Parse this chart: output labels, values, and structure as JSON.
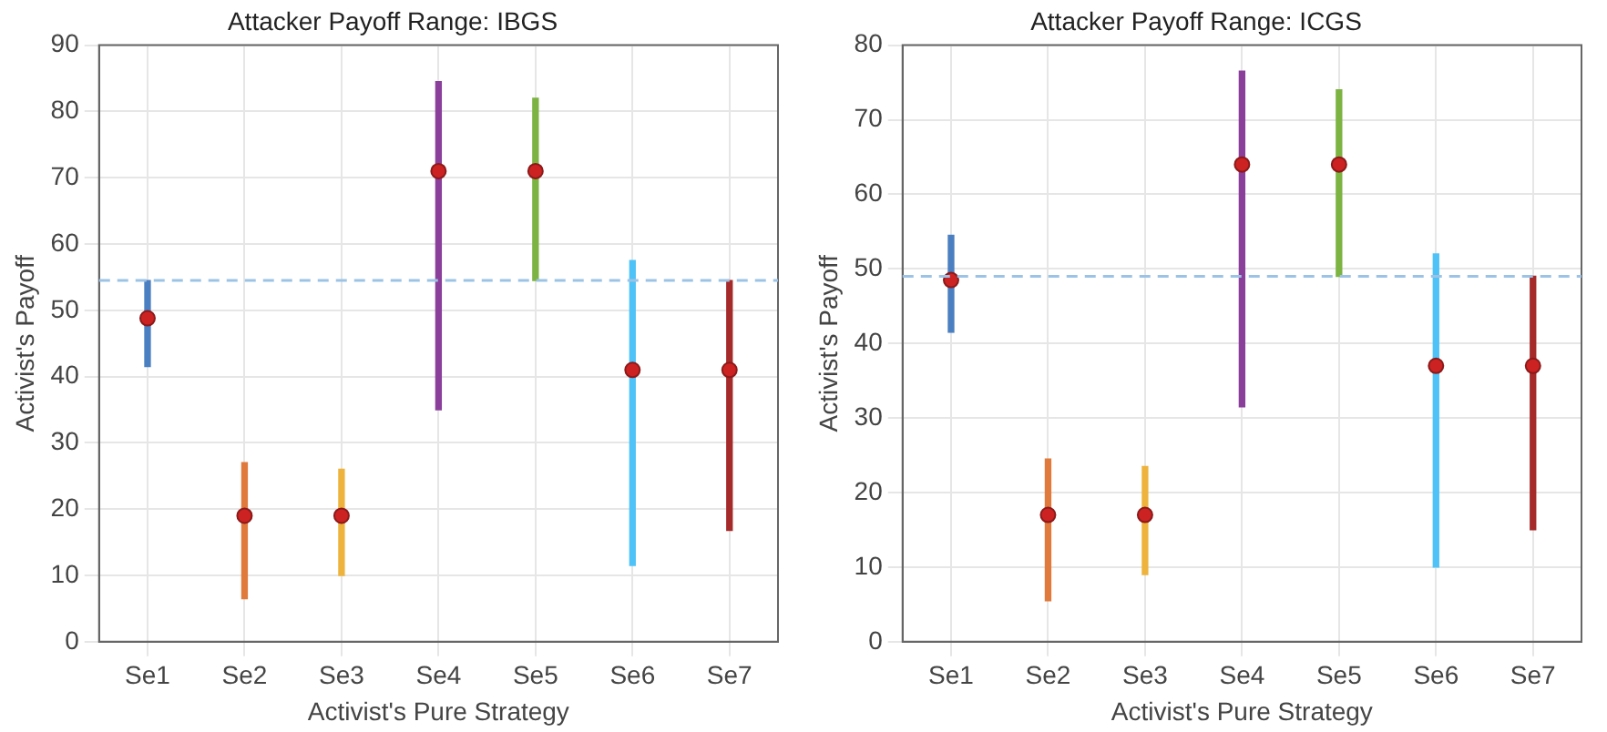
{
  "chart_data": [
    {
      "type": "bar",
      "title": "Attacker Payoff Range: IBGS",
      "xlabel": "Activist's Pure Strategy",
      "ylabel": "Activist's Payoff",
      "categories": [
        "Se1",
        "Se2",
        "Se3",
        "Se4",
        "Se5",
        "Se6",
        "Se7"
      ],
      "series": [
        {
          "type": "bar",
          "base": [
            41.5,
            6.5,
            10,
            35,
            54.5,
            11.5,
            16.8
          ],
          "values": [
            13,
            20.5,
            16,
            49.5,
            27.5,
            46,
            37.7
          ],
          "colors": [
            "#4a7fc1",
            "#e07a3c",
            "#eeb33c",
            "#8a3f9a",
            "#7cb342",
            "#4fc3f7",
            "#a52a2a"
          ]
        },
        {
          "type": "scatter",
          "x": [
            "Se1",
            "Se2",
            "Se3",
            "Se4",
            "Se5",
            "Se6",
            "Se7"
          ],
          "values": [
            48.8,
            19,
            19,
            71,
            71,
            41,
            41
          ],
          "color": "#cc2222"
        }
      ],
      "ylim": [
        0,
        90
      ],
      "yticks": [
        0,
        10,
        20,
        30,
        40,
        50,
        60,
        70,
        80,
        90
      ],
      "grid": true,
      "marker": "circle",
      "ref_lines": [
        {
          "axis": "y",
          "value": 54.5,
          "color": "#9cc3e6",
          "line_style": "dashed"
        }
      ]
    },
    {
      "type": "bar",
      "title": "Attacker Payoff Range: ICGS",
      "xlabel": "Activist's Pure Strategy",
      "ylabel": "Activist's Payoff",
      "categories": [
        "Se1",
        "Se2",
        "Se3",
        "Se4",
        "Se5",
        "Se6",
        "Se7"
      ],
      "series": [
        {
          "type": "bar",
          "base": [
            41.5,
            5.5,
            9,
            31.5,
            49,
            10,
            15
          ],
          "values": [
            13,
            19,
            14.5,
            45,
            25,
            42,
            34
          ],
          "colors": [
            "#4a7fc1",
            "#e07a3c",
            "#eeb33c",
            "#8a3f9a",
            "#7cb342",
            "#4fc3f7",
            "#a52a2a"
          ]
        },
        {
          "type": "scatter",
          "x": [
            "Se1",
            "Se2",
            "Se3",
            "Se4",
            "Se5",
            "Se6",
            "Se7"
          ],
          "values": [
            48.5,
            17,
            17,
            64,
            64,
            37,
            37
          ],
          "color": "#cc2222"
        }
      ],
      "ylim": [
        0,
        80
      ],
      "yticks": [
        0,
        10,
        20,
        30,
        40,
        50,
        60,
        70,
        80
      ],
      "grid": true,
      "marker": "circle",
      "ref_lines": [
        {
          "axis": "y",
          "value": 49,
          "color": "#9cc3e6",
          "line_style": "dashed"
        }
      ]
    }
  ]
}
